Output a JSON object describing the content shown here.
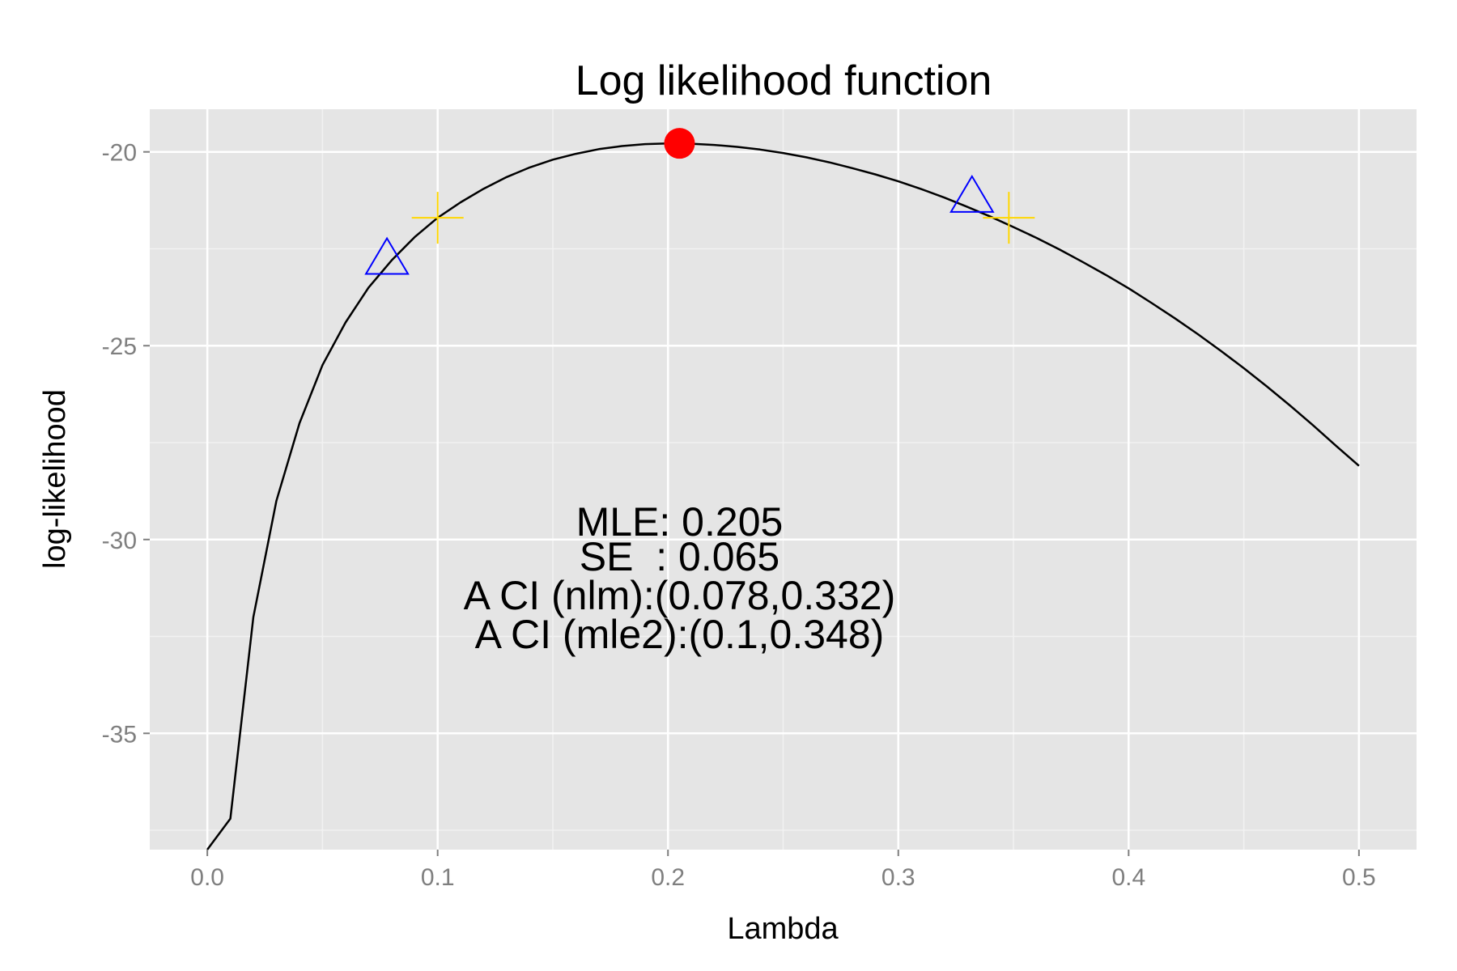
{
  "chart_data": {
    "type": "line",
    "title": "Log likelihood function",
    "xlabel": "Lambda",
    "ylabel": "log-likelihood",
    "xlim": [
      -0.025,
      0.525
    ],
    "ylim": [
      -38.0,
      -18.9
    ],
    "x_ticks": [
      0.0,
      0.1,
      0.2,
      0.3,
      0.4,
      0.5
    ],
    "x_tick_labels": [
      "0.0",
      "0.1",
      "0.2",
      "0.3",
      "0.4",
      "0.5"
    ],
    "y_ticks": [
      -20,
      -25,
      -30,
      -35
    ],
    "y_tick_labels": [
      "-20",
      "-25",
      "-30",
      "-35"
    ],
    "grid": true,
    "background": "#e5e5e5",
    "series": [
      {
        "kind": "line",
        "color": "#000000",
        "x": [
          0.0,
          0.01,
          0.02,
          0.03,
          0.04,
          0.05,
          0.06,
          0.07,
          0.08,
          0.09,
          0.1,
          0.11,
          0.12,
          0.13,
          0.14,
          0.15,
          0.16,
          0.17,
          0.18,
          0.19,
          0.2,
          0.21,
          0.22,
          0.23,
          0.24,
          0.25,
          0.26,
          0.27,
          0.28,
          0.29,
          0.3,
          0.31,
          0.32,
          0.33,
          0.34,
          0.35,
          0.36,
          0.37,
          0.38,
          0.39,
          0.4,
          0.41,
          0.42,
          0.43,
          0.44,
          0.45,
          0.46,
          0.47,
          0.48,
          0.49,
          0.5
        ],
        "y": [
          -38.0,
          -37.2,
          -32.0,
          -29.0,
          -27.0,
          -25.5,
          -24.4,
          -23.5,
          -22.8,
          -22.2,
          -21.7,
          -21.3,
          -20.95,
          -20.65,
          -20.4,
          -20.2,
          -20.05,
          -19.93,
          -19.85,
          -19.8,
          -19.78,
          -19.79,
          -19.82,
          -19.87,
          -19.94,
          -20.03,
          -20.14,
          -20.27,
          -20.42,
          -20.58,
          -20.76,
          -20.96,
          -21.18,
          -21.42,
          -21.67,
          -21.94,
          -22.22,
          -22.52,
          -22.84,
          -23.17,
          -23.52,
          -23.9,
          -24.29,
          -24.7,
          -25.13,
          -25.58,
          -26.05,
          -26.54,
          -27.05,
          -27.58,
          -28.1
        ]
      }
    ],
    "markers": [
      {
        "shape": "circle",
        "color": "#ff0000",
        "x": 0.205,
        "y": -19.78
      },
      {
        "shape": "triangle",
        "color": "#0000ff",
        "x": 0.078,
        "y": -22.8
      },
      {
        "shape": "triangle",
        "color": "#0000ff",
        "x": 0.332,
        "y": -21.2
      },
      {
        "shape": "plus",
        "color": "#ffd700",
        "x": 0.1,
        "y": -21.7
      },
      {
        "shape": "plus",
        "color": "#ffd700",
        "x": 0.348,
        "y": -21.7
      }
    ],
    "annotations": [
      {
        "text": "MLE: 0.205",
        "x": 0.205,
        "y": -29.9
      },
      {
        "text": "SE  : 0.065",
        "x": 0.205,
        "y": -30.8
      },
      {
        "text": "A CI (nlm):(0.078,0.332)",
        "x": 0.205,
        "y": -31.8
      },
      {
        "text": "A CI (mle2):(0.1,0.348)",
        "x": 0.205,
        "y": -32.8
      }
    ]
  }
}
